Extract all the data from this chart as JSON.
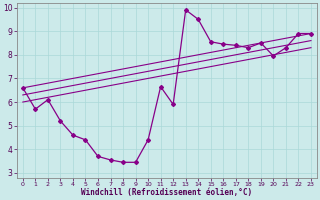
{
  "xlabel": "Windchill (Refroidissement éolien,°C)",
  "bg_color": "#cceaea",
  "line_color": "#880088",
  "xlim": [
    -0.5,
    23.5
  ],
  "ylim": [
    2.8,
    10.2
  ],
  "xticks": [
    0,
    1,
    2,
    3,
    4,
    5,
    6,
    7,
    8,
    9,
    10,
    11,
    12,
    13,
    14,
    15,
    16,
    17,
    18,
    19,
    20,
    21,
    22,
    23
  ],
  "yticks": [
    3,
    4,
    5,
    6,
    7,
    8,
    9,
    10
  ],
  "curve1_x": [
    0,
    1,
    2,
    3,
    4,
    5,
    6,
    7,
    8,
    9,
    10,
    11,
    12,
    13,
    14,
    15,
    16,
    17,
    18,
    19,
    20,
    21,
    22,
    23
  ],
  "curve1_y": [
    6.6,
    5.7,
    6.1,
    5.2,
    4.6,
    4.4,
    3.7,
    3.55,
    3.45,
    3.45,
    4.4,
    6.65,
    5.9,
    9.9,
    9.5,
    8.55,
    8.45,
    8.4,
    8.3,
    8.5,
    7.95,
    8.3,
    8.9,
    8.9
  ],
  "line1_x": [
    0,
    23
  ],
  "line1_y": [
    6.6,
    8.9
  ],
  "line2_x": [
    0,
    23
  ],
  "line2_y": [
    6.6,
    8.9
  ],
  "line3_x": [
    0,
    23
  ],
  "line3_y": [
    6.6,
    8.9
  ],
  "grid_color": "#aad8d8",
  "spine_color": "#888888",
  "tick_color": "#550055",
  "xlabel_color": "#550055",
  "xlabel_fontsize": 5.5,
  "tick_fontsize_x": 4.5,
  "tick_fontsize_y": 5.5,
  "straight_lines": [
    {
      "x": [
        0,
        23
      ],
      "y": [
        6.6,
        8.9
      ]
    },
    {
      "x": [
        0,
        23
      ],
      "y": [
        6.6,
        8.9
      ]
    },
    {
      "x": [
        0,
        23
      ],
      "y": [
        6.6,
        8.9
      ]
    }
  ]
}
